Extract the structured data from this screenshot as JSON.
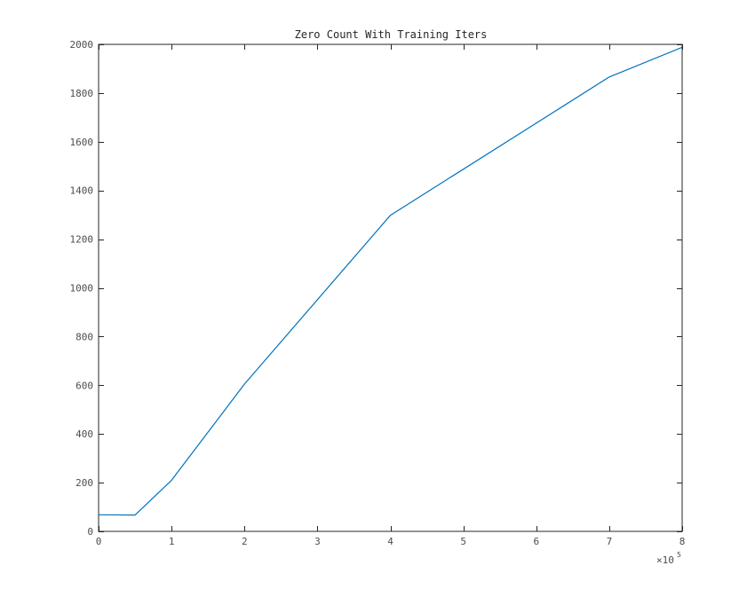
{
  "chart_data": {
    "type": "line",
    "title": "Zero Count With Training Iters",
    "xlabel": "",
    "ylabel": "",
    "x_exponent_base": "×10",
    "x_exponent_power": "5",
    "xlim": [
      0,
      8
    ],
    "ylim": [
      0,
      2000
    ],
    "xticks": [
      0,
      1,
      2,
      3,
      4,
      5,
      6,
      7,
      8
    ],
    "yticks": [
      0,
      200,
      400,
      600,
      800,
      1000,
      1200,
      1400,
      1600,
      1800,
      2000
    ],
    "grid": false,
    "series": [
      {
        "color": "#0072bd",
        "x": [
          0,
          0.5,
          1,
          2,
          4,
          7,
          8
        ],
        "y": [
          68,
          67,
          210,
          605,
          1298,
          1866,
          1988
        ]
      }
    ]
  }
}
